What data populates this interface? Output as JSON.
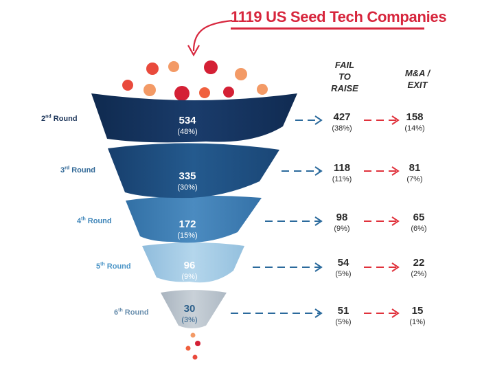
{
  "title": "1119 US Seed Tech Companies",
  "columns": {
    "fail": [
      "FAIL",
      "TO",
      "RAISE"
    ],
    "exit": [
      "M&A /",
      "EXIT"
    ]
  },
  "colors": {
    "title_red": "#d7263d",
    "arrow_blue": "#2b6a9c",
    "arrow_red": "#e0323c",
    "funnel": [
      "#14315a",
      "#1e4f80",
      "#3f7db1",
      "#a9cde6",
      "#b7c2cc"
    ]
  },
  "stages": [
    {
      "round_num": "2",
      "round_ord": "nd",
      "round_word": "Round",
      "count": "534",
      "pct": "(48%)",
      "fail": "427",
      "fail_pct": "(38%)",
      "exit": "158",
      "exit_pct": "(14%)"
    },
    {
      "round_num": "3",
      "round_ord": "rd",
      "round_word": "Round",
      "count": "335",
      "pct": "(30%)",
      "fail": "118",
      "fail_pct": "(11%)",
      "exit": "81",
      "exit_pct": "(7%)"
    },
    {
      "round_num": "4",
      "round_ord": "th",
      "round_word": "Round",
      "count": "172",
      "pct": "(15%)",
      "fail": "98",
      "fail_pct": "(9%)",
      "exit": "65",
      "exit_pct": "(6%)"
    },
    {
      "round_num": "5",
      "round_ord": "th",
      "round_word": "Round",
      "count": "96",
      "pct": "(9%)",
      "fail": "54",
      "fail_pct": "(5%)",
      "exit": "22",
      "exit_pct": "(2%)"
    },
    {
      "round_num": "6",
      "round_ord": "th",
      "round_word": "Round",
      "count": "30",
      "pct": "(3%)",
      "fail": "51",
      "fail_pct": "(5%)",
      "exit": "15",
      "exit_pct": "(1%)"
    }
  ]
}
